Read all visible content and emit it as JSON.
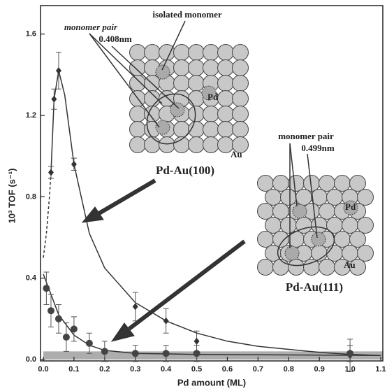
{
  "chart_data": {
    "type": "scatter",
    "xlabel": "Pd amount (ML)",
    "ylabel": "10³ TOF (s⁻¹)",
    "xlim": [
      0,
      1.1
    ],
    "ylim": [
      0,
      1.74
    ],
    "xticks": [
      {
        "value": 0,
        "label": "0.0"
      },
      0.1,
      0.2,
      0.3,
      0.4,
      0.5,
      0.6,
      0.7,
      0.8,
      0.9,
      {
        "value": 1,
        "label": "1.0"
      },
      1.1
    ],
    "yticks": [
      {
        "value": 0,
        "label": "0.0"
      },
      0.4,
      0.8,
      1.2,
      1.6
    ],
    "series": [
      {
        "marker": "diamond",
        "color": "#333333",
        "x": [
          0.025,
          0.035,
          0.05,
          0.1,
          0.3,
          0.4,
          0.5,
          1.0
        ],
        "values": [
          0.92,
          1.28,
          1.42,
          0.96,
          0.26,
          0.19,
          0.09,
          0.02
        ],
        "errors": [
          0.03,
          0.05,
          0.09,
          0.03,
          0.07,
          0.06,
          0.05,
          0.08
        ]
      },
      {
        "marker": "circle",
        "color": "#444444",
        "x": [
          0.01,
          0.025,
          0.05,
          0.075,
          0.1,
          0.15,
          0.2,
          0.3,
          0.4,
          0.5,
          1.0
        ],
        "values": [
          0.35,
          0.24,
          0.2,
          0.11,
          0.15,
          0.08,
          0.04,
          0.03,
          0.03,
          0.03,
          0.03
        ],
        "errors": [
          0.08,
          0.08,
          0.07,
          0.07,
          0.06,
          0.05,
          0.05,
          0.04,
          0.04,
          0.04,
          0.04
        ]
      }
    ],
    "fit_curves": [
      {
        "dashed": true,
        "x": [
          0,
          0.01,
          0.02,
          0.025
        ],
        "values": [
          0.5,
          0.62,
          0.8,
          0.92
        ]
      },
      {
        "dashed": false,
        "x": [
          0.025,
          0.035,
          0.05,
          0.07,
          0.1,
          0.15,
          0.2,
          0.3,
          0.4,
          0.5,
          0.6,
          0.7,
          0.8,
          0.9,
          1.0,
          1.1
        ],
        "values": [
          0.92,
          1.28,
          1.42,
          1.3,
          0.96,
          0.62,
          0.45,
          0.28,
          0.19,
          0.13,
          0.09,
          0.065,
          0.05,
          0.035,
          0.025,
          0.02
        ]
      },
      {
        "dashed": false,
        "x": [
          0,
          0.05,
          0.1,
          0.15,
          0.2,
          0.3,
          0.5,
          1.1
        ],
        "values": [
          0.42,
          0.22,
          0.12,
          0.07,
          0.045,
          0.03,
          0.025,
          0.02
        ]
      }
    ],
    "shaded_band": [
      0,
      0.04
    ],
    "annotations": {
      "isolated_monomer": "isolated monomer",
      "pair_100": "monomer pair",
      "dist_100": "0.408nm",
      "pd_100": "Pd",
      "au_100": "Au",
      "surface_100": "Pd-Au(100)",
      "pair_111": "monomer pair",
      "dist_111": "0.499nm",
      "pd_111": "Pd",
      "au_111": "Au",
      "surface_111": "Pd-Au(111)"
    }
  }
}
